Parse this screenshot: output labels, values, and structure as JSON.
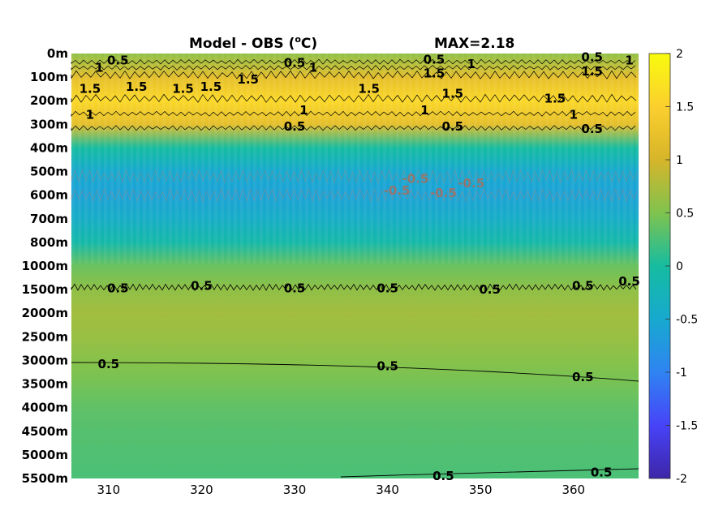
{
  "chart_data": {
    "type": "heatmap",
    "title": "Model - OBS (",
    "title_unit_sup": "o",
    "title_unit_end": "C)",
    "max_label": "MAX=2.18",
    "x_ticks": [
      "310",
      "320",
      "330",
      "340",
      "350",
      "360"
    ],
    "x_tick_values": [
      310,
      320,
      330,
      340,
      350,
      360
    ],
    "x_range": [
      306,
      367
    ],
    "y_ticks": [
      "0m",
      "100m",
      "200m",
      "300m",
      "400m",
      "500m",
      "600m",
      "700m",
      "800m",
      "1000m",
      "1500m",
      "2000m",
      "2500m",
      "3000m",
      "3500m",
      "4000m",
      "4500m",
      "5000m",
      "5500m"
    ],
    "colorbar_ticks": [
      "2",
      "1.5",
      "1",
      "0.5",
      "0",
      "-0.5",
      "-1",
      "-1.5",
      "-2"
    ],
    "colorbar_range": [
      -2,
      2
    ],
    "colormap": [
      "#3e26a8",
      "#4743f8",
      "#2f84f2",
      "#17a9cf",
      "#16bca0",
      "#7fc34e",
      "#d6b52a",
      "#fbcf2e",
      "#f9fb0e"
    ],
    "depth_profile": [
      0.6,
      1.2,
      1.6,
      1.2,
      0.0,
      -0.5,
      -0.6,
      -0.4,
      -0.1,
      0.4,
      0.6,
      0.7,
      0.65,
      0.55,
      0.45,
      0.35,
      0.3,
      0.28,
      0.25
    ],
    "contour_labels": [
      {
        "text": "0.5",
        "x": 311,
        "depth_index": 0.3
      },
      {
        "text": "1",
        "x": 309,
        "depth_index": 0.6
      },
      {
        "text": "0.5",
        "x": 330,
        "depth_index": 0.4
      },
      {
        "text": "1",
        "x": 332,
        "depth_index": 0.6
      },
      {
        "text": "0.5",
        "x": 345,
        "depth_index": 0.25
      },
      {
        "text": "1",
        "x": 349,
        "depth_index": 0.45
      },
      {
        "text": "0.5",
        "x": 362,
        "depth_index": 0.15
      },
      {
        "text": "1",
        "x": 366,
        "depth_index": 0.3
      },
      {
        "text": "1.5",
        "x": 308,
        "depth_index": 1.5
      },
      {
        "text": "1.5",
        "x": 313,
        "depth_index": 1.4
      },
      {
        "text": "1.5",
        "x": 318,
        "depth_index": 1.5
      },
      {
        "text": "1.5",
        "x": 321,
        "depth_index": 1.4
      },
      {
        "text": "1.5",
        "x": 325,
        "depth_index": 1.1
      },
      {
        "text": "1.5",
        "x": 345,
        "depth_index": 0.85
      },
      {
        "text": "1.5",
        "x": 362,
        "depth_index": 0.75
      },
      {
        "text": "1.5",
        "x": 338,
        "depth_index": 1.5
      },
      {
        "text": "1.5",
        "x": 347,
        "depth_index": 1.7
      },
      {
        "text": "1.5",
        "x": 358,
        "depth_index": 1.9
      },
      {
        "text": "1",
        "x": 308,
        "depth_index": 2.6
      },
      {
        "text": "1",
        "x": 331,
        "depth_index": 2.4
      },
      {
        "text": "1",
        "x": 344,
        "depth_index": 2.4
      },
      {
        "text": "1",
        "x": 360,
        "depth_index": 2.6
      },
      {
        "text": "0.5",
        "x": 330,
        "depth_index": 3.1
      },
      {
        "text": "0.5",
        "x": 347,
        "depth_index": 3.1
      },
      {
        "text": "0.5",
        "x": 362,
        "depth_index": 3.2
      },
      {
        "text": "0.5",
        "x": 311,
        "depth_index": 9.95
      },
      {
        "text": "0.5",
        "x": 320,
        "depth_index": 9.85
      },
      {
        "text": "0.5",
        "x": 330,
        "depth_index": 9.95
      },
      {
        "text": "0.5",
        "x": 340,
        "depth_index": 9.95
      },
      {
        "text": "0.5",
        "x": 351,
        "depth_index": 10.0
      },
      {
        "text": "0.5",
        "x": 361,
        "depth_index": 9.85
      },
      {
        "text": "0.5",
        "x": 366,
        "depth_index": 9.65
      },
      {
        "text": "0.5",
        "x": 310,
        "depth_index": 13.15
      },
      {
        "text": "0.5",
        "x": 340,
        "depth_index": 13.25
      },
      {
        "text": "0.5",
        "x": 361,
        "depth_index": 13.7
      },
      {
        "text": "0.5",
        "x": 346,
        "depth_index": 17.9
      },
      {
        "text": "0.5",
        "x": 363,
        "depth_index": 17.75
      }
    ],
    "negative_contour_labels": [
      {
        "text": "-0.5",
        "x": 341,
        "depth_index": 5.8
      },
      {
        "text": "-0.5",
        "x": 343,
        "depth_index": 5.3
      },
      {
        "text": "-0.5",
        "x": 346,
        "depth_index": 5.9
      },
      {
        "text": "-0.5",
        "x": 349,
        "depth_index": 5.5
      }
    ]
  }
}
